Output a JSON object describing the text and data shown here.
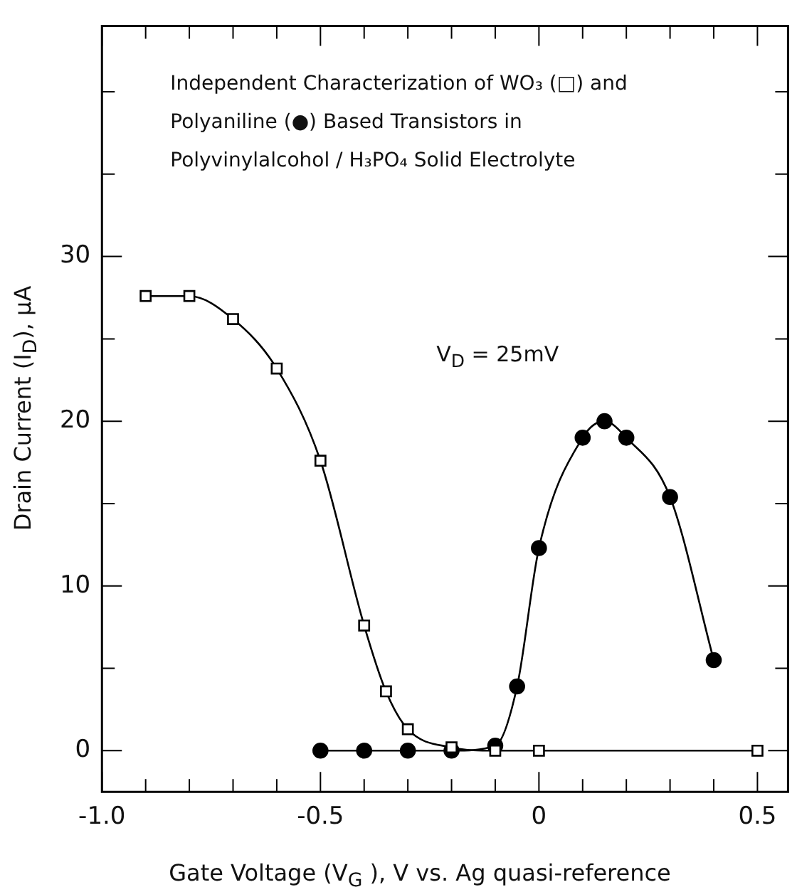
{
  "chart_data": {
    "type": "line",
    "title": "Independent Characterization of WO₃ (□) and Polyaniline (●) Based Transistors in Polyvinylalcohol / H₃PO₄ Solid Electrolyte",
    "xlabel": "Gate Voltage (V$_{G}$ ), V vs. Ag quasi-reference",
    "ylabel": "Drain Current (I$_{D}$), μA",
    "annotations": [
      "V$_{D}$ = 25mV"
    ],
    "series": [
      {
        "color": "#000000",
        "marker": "square",
        "x": [
          -0.9,
          -0.8,
          -0.7,
          -0.6,
          -0.5,
          -0.4,
          -0.35,
          -0.3,
          -0.2,
          -0.1,
          0,
          0.5
        ],
        "values": [
          27.6,
          27.6,
          26.2,
          23.2,
          17.6,
          7.6,
          3.6,
          1.3,
          0.2,
          0,
          0,
          0
        ]
      },
      {
        "color": "#000000",
        "marker": "circle",
        "x": [
          -0.5,
          -0.4,
          -0.3,
          -0.2,
          -0.1,
          -0.05,
          0,
          0.1,
          0.15,
          0.2,
          0.3,
          0.4
        ],
        "values": [
          0,
          0,
          0,
          0,
          0.3,
          3.9,
          12.3,
          19.0,
          20.0,
          19.0,
          15.4,
          5.5
        ]
      }
    ],
    "xlim": [
      -1.0,
      0.57
    ],
    "ylim": [
      -2.5,
      44
    ],
    "xticks": [
      {
        "value": -1,
        "label": "-1.0"
      },
      {
        "value": -0.9,
        "label": null
      },
      {
        "value": -0.8,
        "label": null
      },
      {
        "value": -0.7,
        "label": null
      },
      {
        "value": -0.6,
        "label": null
      },
      {
        "value": -0.5,
        "label": "-0.5"
      },
      {
        "value": -0.4,
        "label": null
      },
      {
        "value": -0.3,
        "label": null
      },
      {
        "value": -0.2,
        "label": null
      },
      {
        "value": -0.1,
        "label": null
      },
      {
        "value": 0,
        "label": "0"
      },
      {
        "value": 0.1,
        "label": null
      },
      {
        "value": 0.2,
        "label": null
      },
      {
        "value": 0.3,
        "label": null
      },
      {
        "value": 0.4,
        "label": null
      },
      {
        "value": 0.5,
        "label": "0.5"
      }
    ],
    "yticks": [
      0,
      {
        "value": 5,
        "label": null
      },
      10,
      {
        "value": 15,
        "label": null
      },
      20,
      {
        "value": 25,
        "label": null
      },
      30,
      {
        "value": 35,
        "label": null
      },
      {
        "value": 40,
        "label": null
      }
    ],
    "grid": false,
    "legend": false,
    "line_style": "solid"
  }
}
